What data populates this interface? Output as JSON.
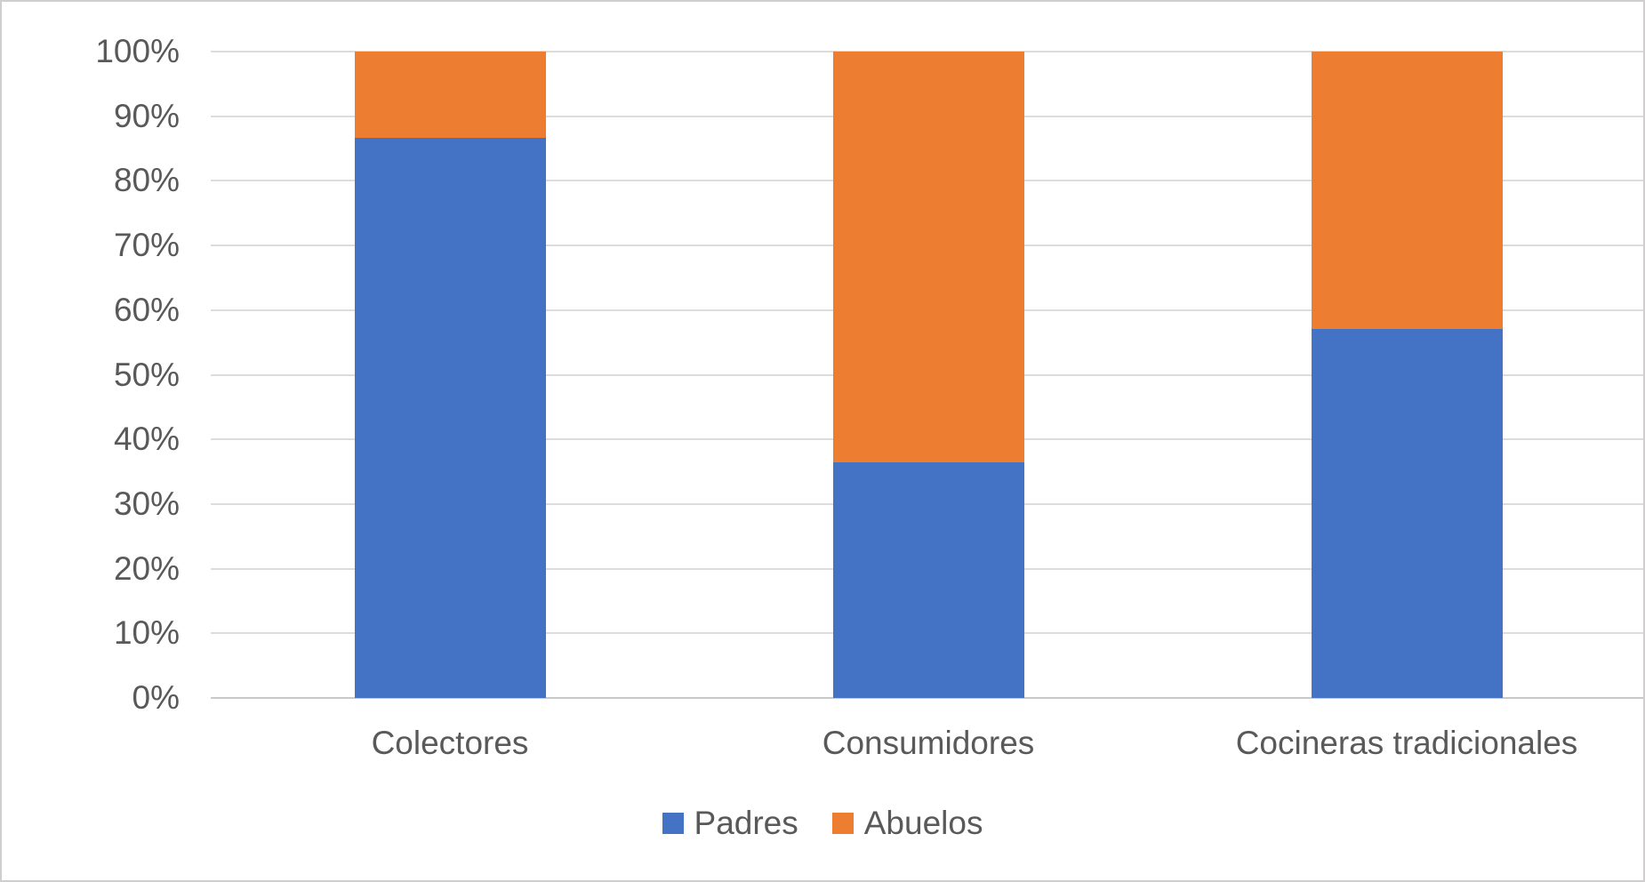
{
  "chart_data": {
    "type": "bar",
    "variant": "stacked-100-percent-column",
    "title": "",
    "xlabel": "",
    "ylabel": "",
    "categories": [
      "Colectores",
      "Consumidores",
      "Cocineras tradicionales"
    ],
    "series": [
      {
        "name": "Padres",
        "color": "#4472c4",
        "values": [
          86.7,
          36.4,
          57.1
        ]
      },
      {
        "name": "Abuelos",
        "color": "#ed7d31",
        "values": [
          13.3,
          63.6,
          42.9
        ]
      }
    ],
    "values_unit": "percent of total per category",
    "y_axis": {
      "min": 0,
      "max": 100,
      "tick_step": 10,
      "tick_values": [
        0,
        10,
        20,
        30,
        40,
        50,
        60,
        70,
        80,
        90,
        100
      ],
      "tick_labels": [
        "0%",
        "10%",
        "20%",
        "30%",
        "40%",
        "50%",
        "60%",
        "70%",
        "80%",
        "90%",
        "100%"
      ]
    },
    "grid": "horizontal-on",
    "legend": {
      "position": "bottom",
      "items": [
        {
          "label": "Padres",
          "color": "#4472c4"
        },
        {
          "label": "Abuelos",
          "color": "#ed7d31"
        }
      ]
    }
  },
  "colors": {
    "series_padres": "#4472c4",
    "series_abuelos": "#ed7d31",
    "gridline": "#dcdcdc",
    "axis_line": "#c9c9c9",
    "text": "#595959",
    "chart_border": "#d0cece",
    "background": "#ffffff"
  }
}
